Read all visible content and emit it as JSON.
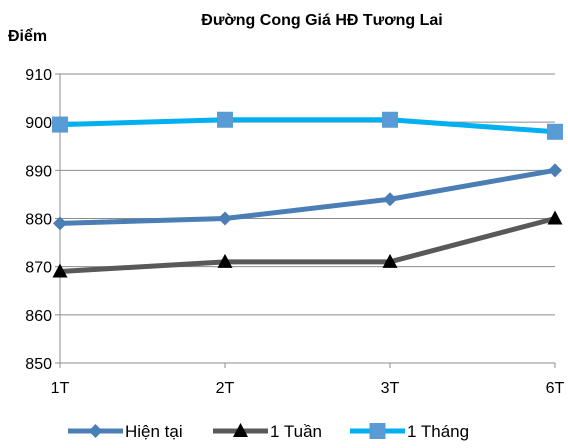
{
  "chart_data": {
    "type": "line",
    "title": "Đường Cong Giá HĐ Tương Lai",
    "ylabel": "Điểm",
    "xlabel": "",
    "categories": [
      "1T",
      "2T",
      "3T",
      "6T"
    ],
    "ylim": [
      850,
      910
    ],
    "yticks": [
      850,
      860,
      870,
      880,
      890,
      900,
      910
    ],
    "grid": true,
    "legend_position": "bottom",
    "series": [
      {
        "name": "Hiện tại",
        "values": [
          879,
          880,
          884,
          890
        ],
        "color": "#4a7eb5",
        "marker": "diamond"
      },
      {
        "name": "1 Tuần",
        "values": [
          869,
          871,
          871,
          880
        ],
        "color": "#595959",
        "marker": "triangle",
        "marker_color": "#000000"
      },
      {
        "name": "1 Tháng",
        "values": [
          899.5,
          900.5,
          900.5,
          898
        ],
        "color": "#00b0f0",
        "marker": "square",
        "marker_color": "#5b9bd5"
      }
    ]
  }
}
